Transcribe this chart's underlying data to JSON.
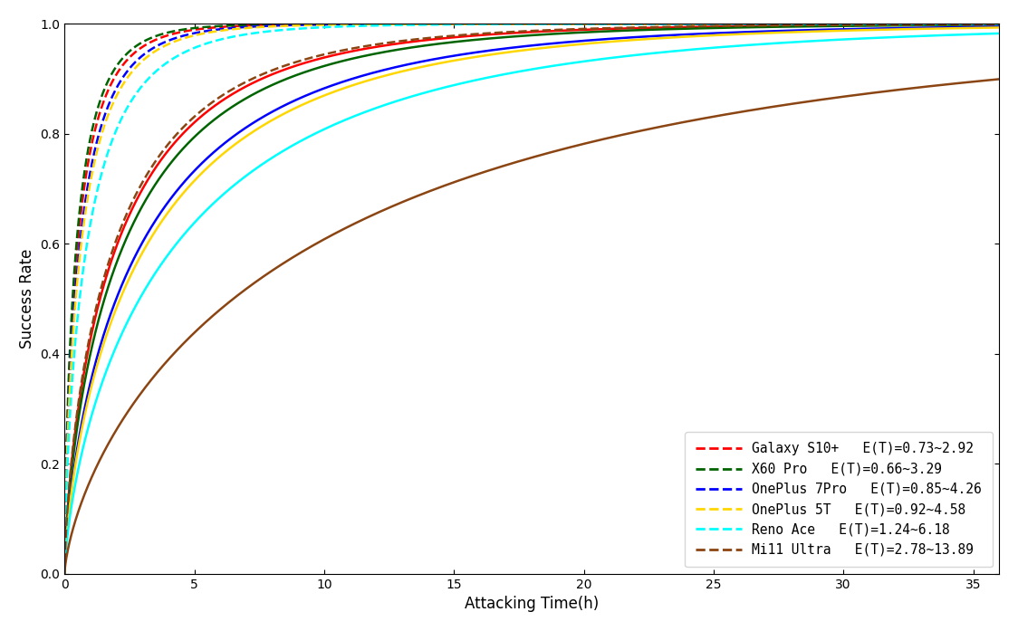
{
  "devices": [
    {
      "label": "Galaxy S10+",
      "et_label": "E(T)=0.73~2.92",
      "et_low": 0.73,
      "et_high": 2.92,
      "color": "#FF0000"
    },
    {
      "label": "X60 Pro",
      "et_label": "E(T)=0.66~3.29",
      "et_low": 0.66,
      "et_high": 3.29,
      "color": "#006400"
    },
    {
      "label": "OnePlus 7Pro",
      "et_label": "E(T)=0.85~4.26",
      "et_low": 0.85,
      "et_high": 4.26,
      "color": "#0000FF"
    },
    {
      "label": "OnePlus 5T",
      "et_label": "E(T)=0.92~4.58",
      "et_low": 0.92,
      "et_high": 4.58,
      "color": "#FFD700"
    },
    {
      "label": "Reno Ace",
      "et_label": "E(T)=1.24~6.18",
      "et_low": 1.24,
      "et_high": 6.18,
      "color": "#00FFFF"
    },
    {
      "label": "Mi11 Ultra",
      "et_label": "E(T)=2.78~13.89",
      "et_low": 2.78,
      "et_high": 13.89,
      "color": "#8B4513"
    }
  ],
  "xlabel": "Attacking Time(h)",
  "ylabel": "Success Rate",
  "xlim": [
    0,
    36
  ],
  "ylim": [
    0.0,
    1.0
  ],
  "xticks": [
    0,
    5,
    10,
    15,
    20,
    25,
    30,
    35
  ],
  "yticks": [
    0.0,
    0.2,
    0.4,
    0.6,
    0.8,
    1.0
  ],
  "legend_loc": "lower right",
  "figsize": [
    11.24,
    6.97
  ],
  "dpi": 100,
  "weibull_k": 0.7
}
